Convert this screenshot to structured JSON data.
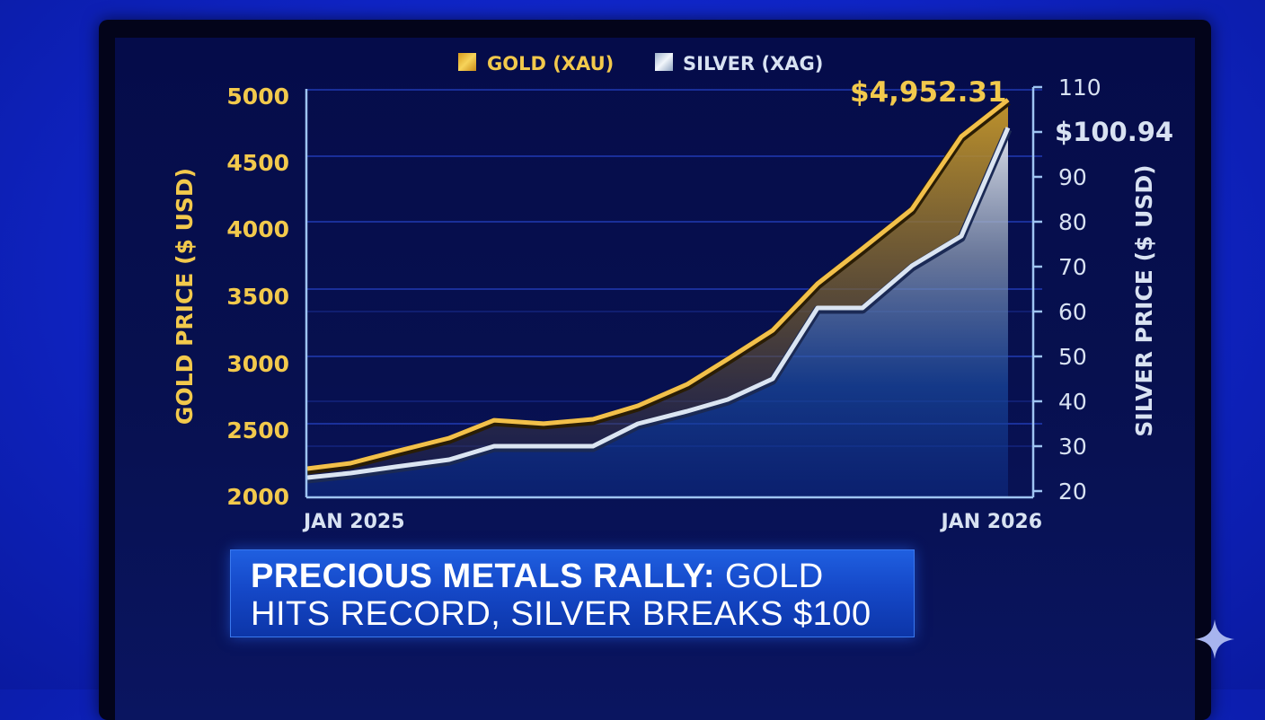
{
  "legend": {
    "gold_label": "GOLD (XAU)",
    "silver_label": "SILVER (XAG)"
  },
  "callouts": {
    "gold_latest": "$4,952.31",
    "silver_latest": "$100.94"
  },
  "axes": {
    "left_title": "GOLD PRICE ($ USD)",
    "right_title": "SILVER PRICE ($ USD)",
    "left_ticks": [
      "5000",
      "4500",
      "4000",
      "3500",
      "3000",
      "2500",
      "2000"
    ],
    "right_ticks": [
      "110",
      "90",
      "80",
      "70",
      "60",
      "50",
      "40",
      "30",
      "20"
    ],
    "x_start": "JAN 2025",
    "x_end": "JAN 2026"
  },
  "headline": {
    "bold": "PRECIOUS METALS RALLY:",
    "rest_line1": " GOLD",
    "line2": "HITS RECORD, SILVER BREAKS $100"
  },
  "colors": {
    "gold": "#f2c94c",
    "silver": "#d8e2f2",
    "background": "#0f24c4",
    "screen": "#06104d",
    "headline_bar": "#1548c8"
  },
  "icons": {
    "corner_mark": "sparkle-icon"
  },
  "chart_data": {
    "type": "line",
    "title": "Precious Metals Rally: Gold Hits Record, Silver Breaks $100",
    "xlabel": "",
    "x": [
      "Jan 2025",
      "",
      "",
      "",
      "",
      "",
      "",
      "",
      "",
      "",
      "",
      "",
      "",
      "",
      "",
      "Jan 2026"
    ],
    "series": [
      {
        "name": "GOLD (XAU)",
        "axis": "left",
        "values": [
          2213,
          2253,
          2340,
          2440,
          2573,
          2547,
          2580,
          2680,
          2840,
          3027,
          3240,
          3587,
          3847,
          4140,
          4680,
          4952
        ]
      },
      {
        "name": "SILVER (XAG)",
        "axis": "right",
        "values": [
          23,
          24,
          25.4,
          27,
          30,
          30,
          30,
          35,
          37.8,
          40.4,
          45,
          60.8,
          60.8,
          70.2,
          76.8,
          100.94
        ]
      }
    ],
    "ylabel": "GOLD PRICE ($ USD)",
    "ylim": [
      2000,
      5000
    ],
    "y2label": "SILVER PRICE ($ USD)",
    "y2lim": [
      20,
      110
    ],
    "y2ticks": [
      20,
      30,
      40,
      50,
      60,
      70,
      80,
      90,
      110
    ],
    "annotations": [
      "$4,952.31",
      "$100.94"
    ],
    "grid": true,
    "legend_position": "top"
  }
}
